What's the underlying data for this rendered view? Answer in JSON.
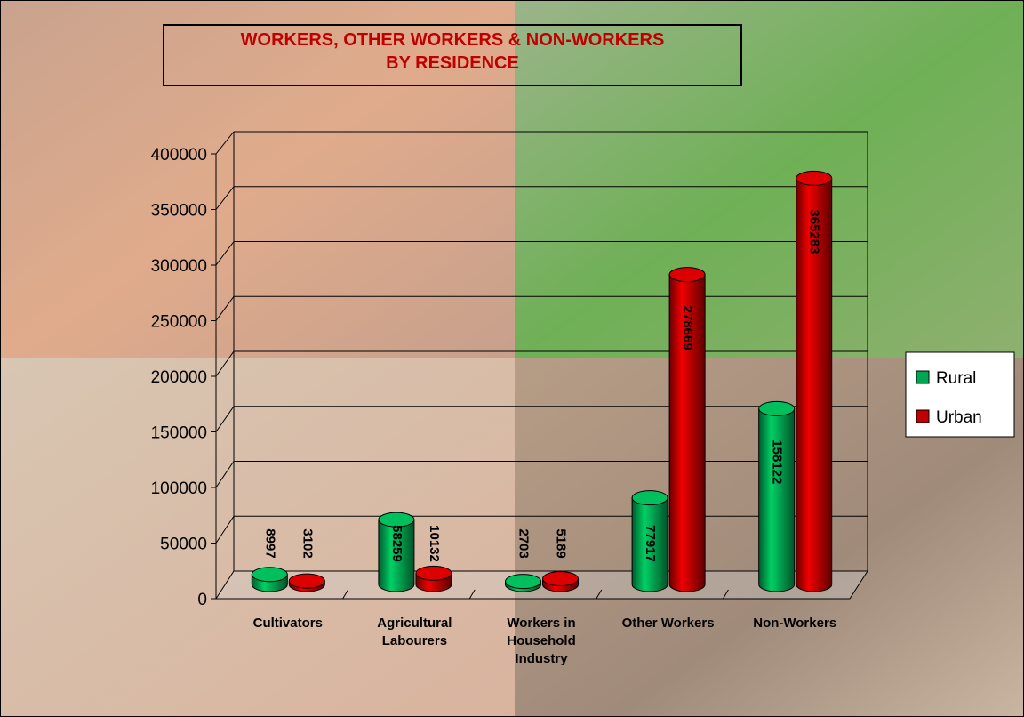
{
  "chart_data": {
    "type": "bar3d",
    "title": [
      "WORKERS, OTHER WORKERS & NON-WORKERS",
      "BY RESIDENCE"
    ],
    "categories": [
      "Cultivators",
      "Agricultural Labourers",
      "Workers in Household Industry",
      "Other Workers",
      "Non-Workers"
    ],
    "series": [
      {
        "name": "Rural",
        "color": "#00a651",
        "values": [
          8997,
          58259,
          2703,
          77917,
          158122
        ]
      },
      {
        "name": "Urban",
        "color": "#c00000",
        "values": [
          3102,
          10132,
          5189,
          278669,
          365283
        ]
      }
    ],
    "ylim": [
      0,
      400000
    ],
    "yticks": [
      0,
      50000,
      100000,
      150000,
      200000,
      250000,
      300000,
      350000,
      400000
    ],
    "grid": true,
    "legend": "right"
  }
}
